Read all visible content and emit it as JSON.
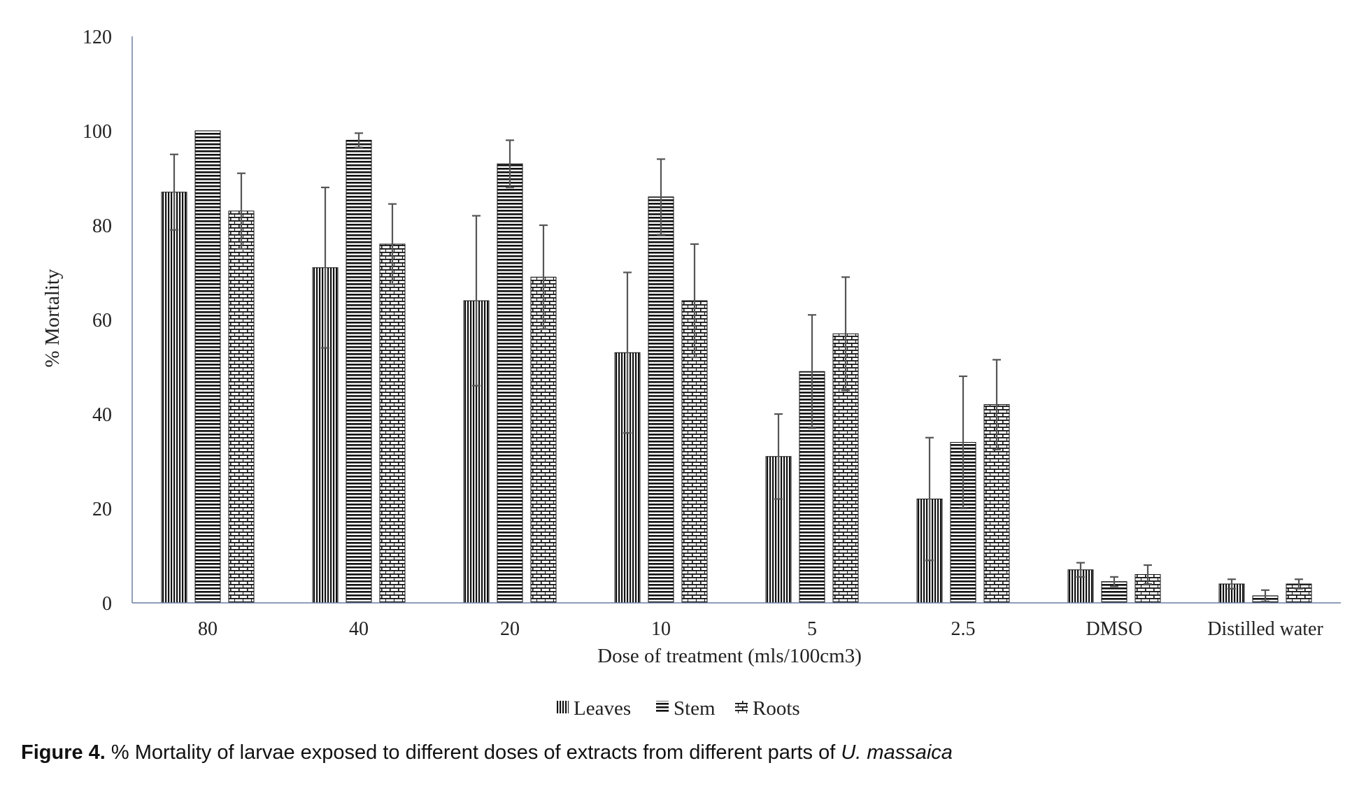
{
  "chart_data": {
    "type": "bar",
    "title": "",
    "xlabel": "Dose of treatment (mls/100cm3)",
    "ylabel": "% Mortality",
    "ylim": [
      0,
      120
    ],
    "yticks": [
      "0",
      "20",
      "40",
      "60",
      "80",
      "100",
      "120"
    ],
    "categories": [
      "80",
      "40",
      "20",
      "10",
      "5",
      "2.5",
      "DMSO",
      "Distilled water"
    ],
    "grid": false,
    "legend_position": "bottom",
    "series": [
      {
        "name": "Leaves",
        "pattern": "vertical-lines",
        "values": [
          87,
          71,
          64,
          53,
          31,
          22,
          7,
          4
        ],
        "errors": [
          8,
          17,
          18,
          17,
          9,
          13,
          1.5,
          1
        ]
      },
      {
        "name": "Stem",
        "pattern": "horizontal-lines",
        "values": [
          100,
          98,
          93,
          86,
          49,
          34,
          4.5,
          1.5
        ],
        "errors": [
          0,
          1.5,
          5,
          8,
          12,
          14,
          1,
          1.2
        ]
      },
      {
        "name": "Roots",
        "pattern": "brick",
        "values": [
          83,
          76,
          69,
          64,
          57,
          42,
          6,
          4
        ],
        "errors": [
          8,
          8.5,
          11,
          12,
          12,
          9.5,
          2,
          1
        ]
      }
    ],
    "colors": {
      "axis": "#6b7fa3",
      "ink": "#111111",
      "errorbar": "#555555"
    }
  },
  "caption": {
    "label": "Figure 4.",
    "text": " % Mortality of larvae exposed to different doses of extracts from different parts of ",
    "species": "U. massaica"
  }
}
